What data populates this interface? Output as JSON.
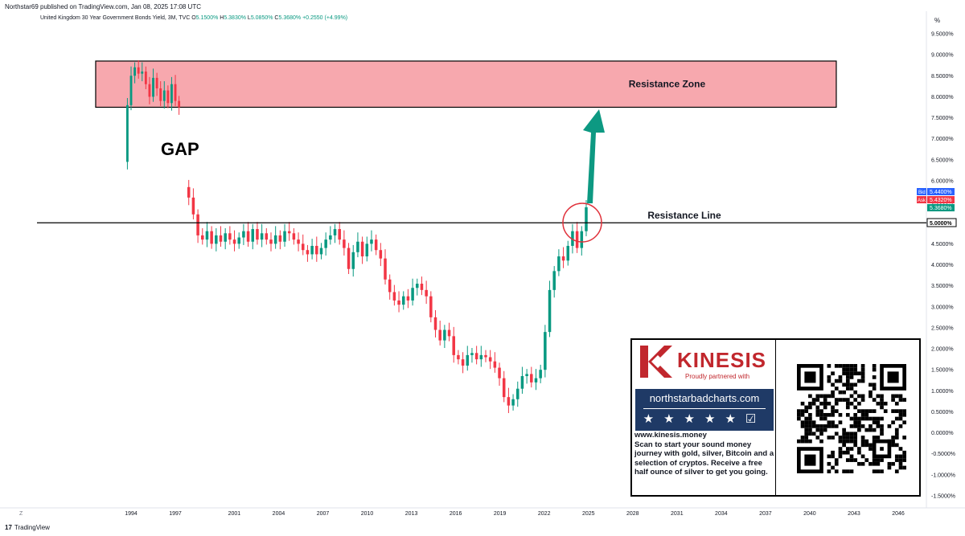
{
  "header": {
    "published_text": "Northstar69 published on TradingView.com, Jan 08, 2025 17:08 UTC"
  },
  "symbol": {
    "name": "United Kingdom 30 Year Government Bonds Yield, 3M, TVC",
    "o_label": "O",
    "o_value": "5.1500%",
    "h_label": "H",
    "h_value": "5.3830%",
    "l_label": "L",
    "l_value": "5.0850%",
    "c_label": "C",
    "c_value": "5.3680%",
    "change": "+0.2550 (+4.99%)"
  },
  "annotations": {
    "gap": "GAP",
    "resistance_zone": "Resistance Zone",
    "resistance_line": "Resistance Line"
  },
  "price_tags": {
    "bid_label": "Bid",
    "bid_value": "5.4400%",
    "ask_label": "Ask",
    "ask_value": "5.4320%",
    "last_value": "5.3680%",
    "line_value": "5.0000%"
  },
  "footer": {
    "logo_text": "17",
    "brand": "TradingView"
  },
  "axis_corner": {
    "percent": "%",
    "z": "Z"
  },
  "ad": {
    "brand": "KINESIS",
    "tagline": "Proudly partnered with",
    "site": "northstarbadcharts.com",
    "url": "www.kinesis.money",
    "body": "Scan to start your sound money journey with gold, silver, Bitcoin and a selection of cryptos. Receive a free half ounce of silver to get you going."
  },
  "colors": {
    "up": "#089981",
    "down": "#f23645",
    "zone": "#f7a8ae",
    "arrow": "#0d9982",
    "kinesis_red": "#c1272d",
    "badge_blue": "#1f3a66"
  },
  "chart_data": {
    "type": "candlestick",
    "title": "United Kingdom 30 Year Government Bonds Yield, 3M, TVC",
    "y_unit": "%",
    "ylim": [
      -1.7,
      9.8
    ],
    "xlim": [
      1992,
      2047.5
    ],
    "y_ticks": [
      "9.5000%",
      "9.0000%",
      "8.5000%",
      "8.0000%",
      "7.5000%",
      "7.0000%",
      "6.5000%",
      "6.0000%",
      "5.5000%",
      "5.0000%",
      "4.5000%",
      "4.0000%",
      "3.5000%",
      "3.0000%",
      "2.5000%",
      "2.0000%",
      "1.5000%",
      "1.0000%",
      "0.5000%",
      "0.0000%",
      "-0.5000%",
      "-1.0000%",
      "-1.5000%"
    ],
    "y_tick_values": [
      9.5,
      9.0,
      8.5,
      8.0,
      7.5,
      7.0,
      6.5,
      6.0,
      5.5,
      5.0,
      4.5,
      4.0,
      3.5,
      3.0,
      2.5,
      2.0,
      1.5,
      1.0,
      0.5,
      0.0,
      -0.5,
      -1.0,
      -1.5
    ],
    "x_ticks": [
      "1994",
      "1997",
      "2001",
      "2004",
      "2007",
      "2010",
      "2013",
      "2016",
      "2019",
      "2022",
      "2025",
      "2028",
      "2031",
      "2034",
      "2037",
      "2040",
      "2043",
      "2046"
    ],
    "x_tick_values": [
      1994,
      1997,
      2001,
      2004,
      2007,
      2010,
      2013,
      2016,
      2019,
      2022,
      2025,
      2028,
      2031,
      2034,
      2037,
      2040,
      2043,
      2046
    ],
    "resistance_zone": {
      "y_from": 7.75,
      "y_to": 8.85,
      "x_from": 1991.6,
      "x_to": 2041.8
    },
    "resistance_line": 5.0,
    "gap_window": {
      "from_year": 1997.2,
      "to_year": 1997.6
    },
    "candles_segments": [
      {
        "from_year": 1993.5,
        "to_year": 1997.25,
        "points": [
          6.45,
          7.8,
          8.5,
          8.7,
          8.55,
          8.6,
          8.3,
          8.0,
          8.45,
          8.2,
          7.9,
          8.15,
          7.85,
          8.3,
          7.9,
          7.75
        ]
      },
      {
        "from_year": 1997.6,
        "to_year": 2024.85,
        "points": [
          5.85,
          5.6,
          5.2,
          4.7,
          4.6,
          4.8,
          4.5,
          4.7,
          4.55,
          4.75,
          4.6,
          4.5,
          4.65,
          4.8,
          4.55,
          4.85,
          4.6,
          4.75,
          4.6,
          4.5,
          4.7,
          4.55,
          4.8,
          4.75,
          4.6,
          4.5,
          4.35,
          4.25,
          4.45,
          4.25,
          4.4,
          4.6,
          4.7,
          4.85,
          4.6,
          4.4,
          3.9,
          4.3,
          4.55,
          4.2,
          4.5,
          4.6,
          4.35,
          4.15,
          3.65,
          3.35,
          3.15,
          3.05,
          3.25,
          3.15,
          3.45,
          3.55,
          3.4,
          3.25,
          2.75,
          2.45,
          2.2,
          2.45,
          2.3,
          1.85,
          1.75,
          1.6,
          1.85,
          1.9,
          1.75,
          1.85,
          1.8,
          1.7,
          1.55,
          1.3,
          0.85,
          0.65,
          0.8,
          1.05,
          1.35,
          1.4,
          1.2,
          1.3,
          1.5,
          2.4,
          3.4,
          3.85,
          4.2,
          4.1,
          4.45,
          4.8,
          4.4,
          4.8,
          5.37
        ]
      }
    ]
  }
}
